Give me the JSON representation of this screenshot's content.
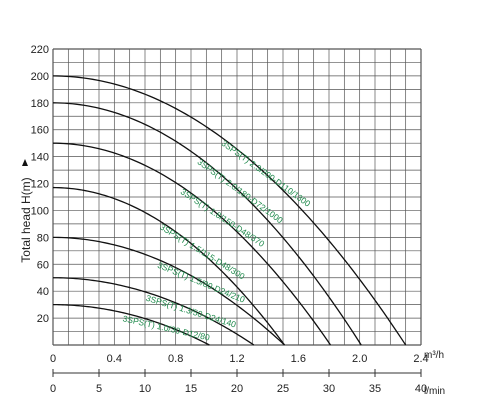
{
  "chart_data": {
    "type": "line",
    "title": "",
    "ylabel": "Total head H(m)",
    "x_unit_primary": "m³/h",
    "x_unit_secondary": "l/min",
    "xlim": [
      0,
      2.4
    ],
    "ylim": [
      0,
      220
    ],
    "x_ticks": [
      "0",
      "0.4",
      "0.8",
      "1.2",
      "1.6",
      "2.0",
      "2.4"
    ],
    "x_ticks_secondary": [
      "0",
      "5",
      "10",
      "15",
      "20",
      "25",
      "30",
      "35",
      "40"
    ],
    "y_ticks": [
      "20",
      "40",
      "60",
      "80",
      "100",
      "120",
      "140",
      "160",
      "180",
      "200",
      "220"
    ],
    "grid": true,
    "series": [
      {
        "name": "3SPS(T) 1.0/30-D12/80",
        "shutoff_head": 30,
        "max_flow": 1.02
      },
      {
        "name": "3SPS(T) 1.3/50-D24/140",
        "shutoff_head": 50,
        "max_flow": 1.31
      },
      {
        "name": "3SPS(T) 1.5/80-D24/210",
        "shutoff_head": 80,
        "max_flow": 1.51
      },
      {
        "name": "3SPS(T) 1.5/115-D48/300",
        "shutoff_head": 117,
        "max_flow": 1.51
      },
      {
        "name": "3SPS(T) 1.8/150-D48/370",
        "shutoff_head": 150,
        "max_flow": 1.81
      },
      {
        "name": "3SPS(T) 2.0/180-D72/1000",
        "shutoff_head": 180,
        "max_flow": 2.01
      },
      {
        "name": "3SPS(T) 2.3/200-D110/1300",
        "shutoff_head": 200,
        "max_flow": 2.3
      }
    ],
    "colors": {
      "curve": "#111111",
      "label": "#1f8a4c",
      "grid": "#555555",
      "axis_text": "#222222"
    }
  }
}
